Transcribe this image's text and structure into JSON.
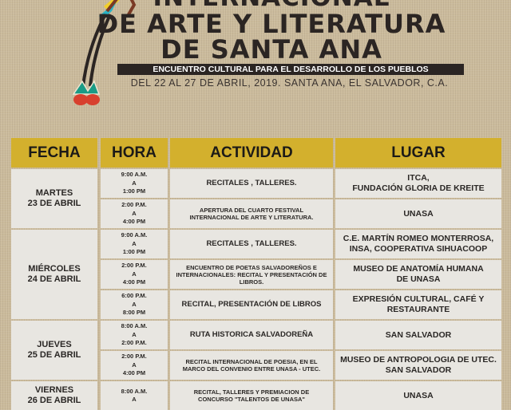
{
  "title": {
    "line1": "INTERNACIONAL",
    "line2": "DE ARTE Y LITERATURA",
    "line3": "DE SANTA ANA",
    "subtitle": "ENCUENTRO CULTURAL PARA EL DESARROLLO DE LOS PUEBLOS",
    "date": "DEL 22 AL 27 DE ABRIL, 2019. SANTA ANA, EL SALVADOR, C.A."
  },
  "colors": {
    "header": "#d3b02d",
    "cell": "#e8e6e1",
    "background": "#cbbb9c",
    "text": "#2b2523"
  },
  "illustration": "quetzal-tail-feathers",
  "table": {
    "headers": [
      "FECHA",
      "HORA",
      "ACTIVIDAD",
      "LUGAR"
    ],
    "days": [
      {
        "fecha": "MARTES\n23 DE ABRIL",
        "rows": [
          {
            "hora": "9:00 A.M.\nA\n1:00 PM",
            "actividad": "RECITALES , TALLERES.",
            "lugar": "ITCA,\nFUNDACIÓN GLORIA DE KREITE"
          },
          {
            "hora": "2:00 P.M.\nA\n4:00 PM",
            "actividad": "APERTURA DEL CUARTO FESTIVAL\nINTERNACIONAL DE ARTE Y LITERATURA.",
            "lugar": "UNASA"
          }
        ]
      },
      {
        "fecha": "MIÉRCOLES\n24 DE ABRIL",
        "rows": [
          {
            "hora": "9:00 A.M.\nA\n1:00 PM",
            "actividad": "RECITALES , TALLERES.",
            "lugar": "C.E. MARTÍN ROMEO MONTERROSA,\nINSA, COOPERATIVA SIHUACOOP"
          },
          {
            "hora": "2:00 P.M.\nA\n4:00 PM",
            "actividad": "ENCUENTRO DE POETAS SALVADOREÑOS E\nINTERNACIONALES: RECITAL Y PRESENTACIÓN DE\nLIBROS.",
            "lugar": "MUSEO DE ANATOMÍA HUMANA\nDE UNASA"
          },
          {
            "hora": "6:00 P.M.\nA\n8:00 PM",
            "actividad": "RECITAL, PRESENTACIÓN DE LIBROS",
            "lugar": "EXPRESIÓN CULTURAL, CAFÉ Y\nRESTAURANTE"
          }
        ]
      },
      {
        "fecha": "JUEVES\n25 DE ABRIL",
        "rows": [
          {
            "hora": "8:00 A.M.\nA\n2:00 P.M.",
            "actividad": "RUTA HISTORICA SALVADOREÑA",
            "lugar": "SAN SALVADOR"
          },
          {
            "hora": "2:00 P.M.\nA\n4:00 PM",
            "actividad": "RECITAL INTERNACIONAL DE POESIA, EN EL\nMARCO DEL CONVENIO ENTRE UNASA - UTEC.",
            "lugar": "MUSEO DE ANTROPOLOGIA DE UTEC.\nSAN SALVADOR"
          }
        ]
      },
      {
        "fecha": "VIERNES\n26 DE ABRIL",
        "rows": [
          {
            "hora": "8:00 A.M.\nA",
            "actividad": "RECITAL, TALLERES Y PREMIACION DE\nCONCURSO \"TALENTOS DE UNASA\"",
            "lugar": "UNASA"
          }
        ]
      }
    ]
  }
}
